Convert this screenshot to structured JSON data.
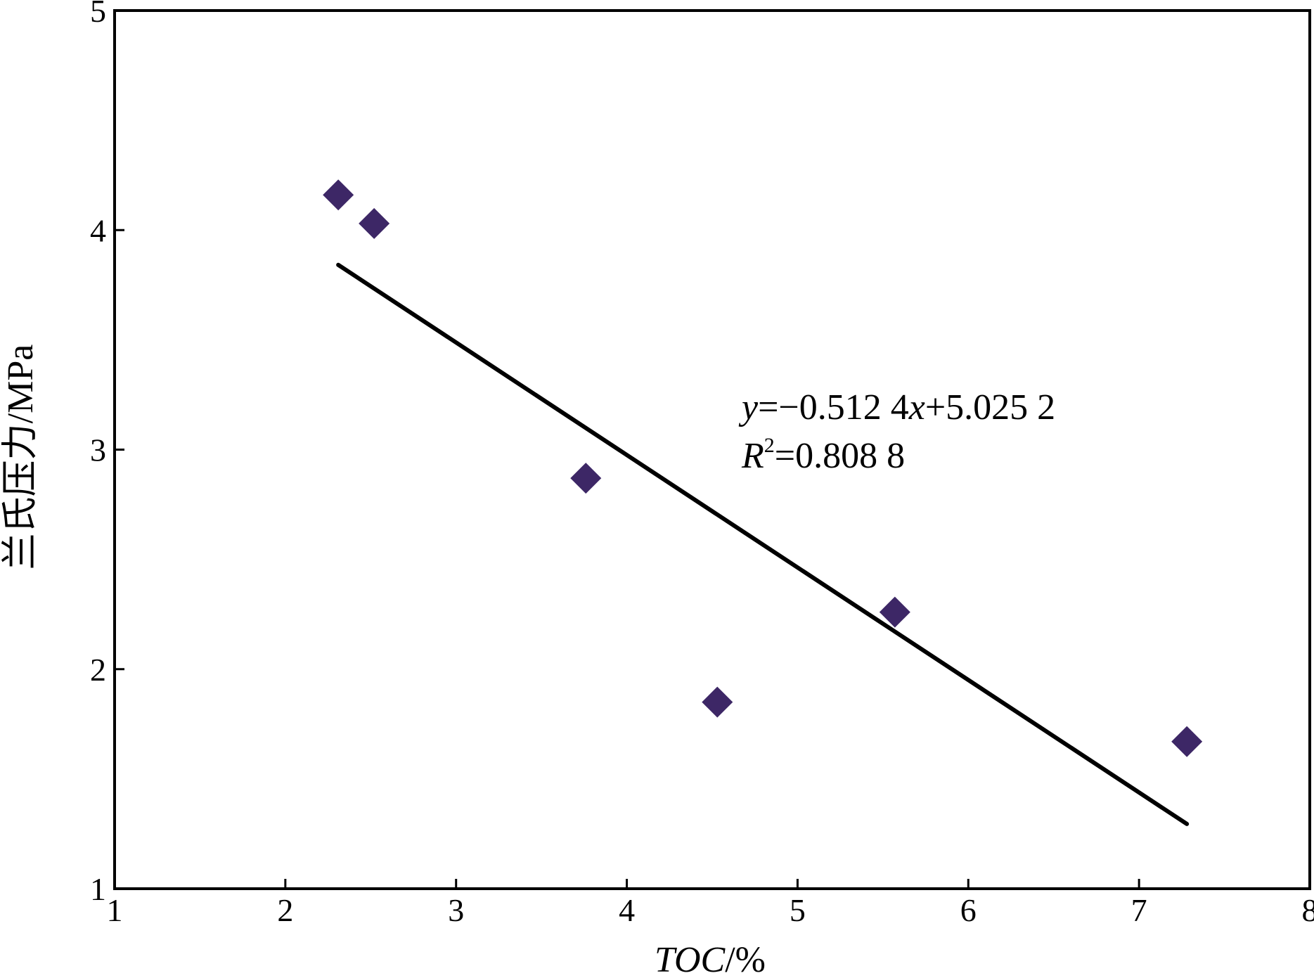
{
  "chart_data": {
    "type": "scatter",
    "title": "",
    "xlabel_parts": [
      "TOC",
      "/%"
    ],
    "ylabel": "兰氏压力/MPa",
    "xlim": [
      1,
      8
    ],
    "ylim": [
      1,
      5
    ],
    "x_ticks": [
      "1",
      "2",
      "3",
      "4",
      "5",
      "6",
      "7",
      "8"
    ],
    "y_ticks": [
      "1",
      "2",
      "3",
      "4",
      "5"
    ],
    "grid": false,
    "legend": "none",
    "marker_color": "#3d2766",
    "marker_shape": "diamond",
    "series": [
      {
        "points": [
          {
            "x": 2.31,
            "y": 4.16
          },
          {
            "x": 2.52,
            "y": 4.03
          },
          {
            "x": 3.76,
            "y": 2.87
          },
          {
            "x": 4.53,
            "y": 1.85
          },
          {
            "x": 5.57,
            "y": 2.26
          },
          {
            "x": 7.28,
            "y": 1.67
          }
        ]
      }
    ],
    "trendline": {
      "slope": -0.5124,
      "intercept": 5.0252,
      "x_start": 2.31,
      "x_end": 7.28,
      "color": "#000000"
    },
    "annotation": {
      "eq_y": "y",
      "eq_body1": "=−0.512 4",
      "eq_x": "x",
      "eq_body2": "+5.025 2",
      "r_letter": "R",
      "r_sup": "2",
      "r_value": "=0.808 8"
    }
  }
}
